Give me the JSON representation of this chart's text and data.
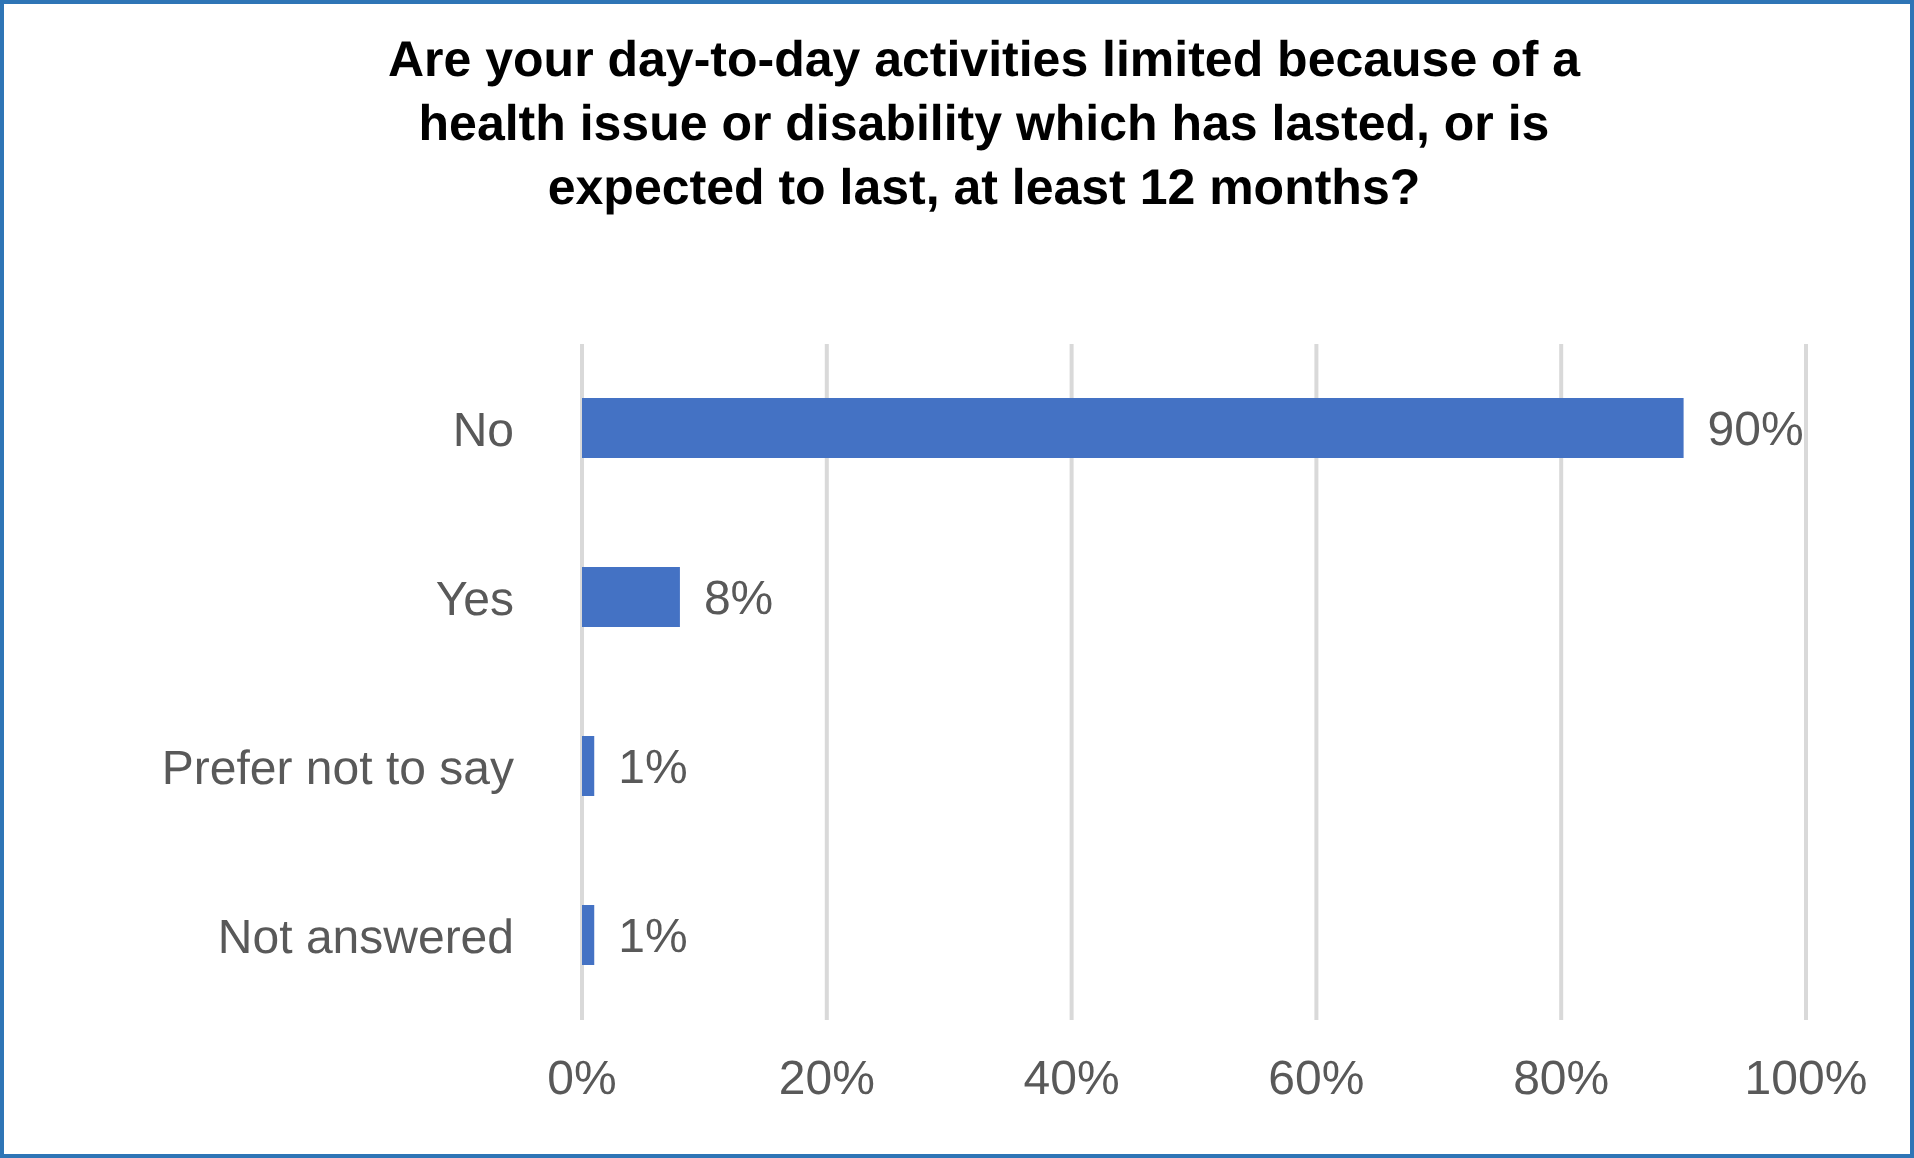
{
  "chart_data": {
    "type": "bar",
    "orientation": "horizontal",
    "title": "Are your day-to-day activities limited because of a health issue or disability which has lasted, or is expected to last, at least 12 months?",
    "categories": [
      "No",
      "Yes",
      "Prefer not to say",
      "Not answered"
    ],
    "values": [
      90,
      8,
      1,
      1
    ],
    "value_labels": [
      "90%",
      "8%",
      "1%",
      "1%"
    ],
    "color": "#4472c4",
    "xlim": [
      0,
      100
    ],
    "xticks": [
      {
        "value": 0,
        "label": "0%"
      },
      {
        "value": 20,
        "label": "20%"
      },
      {
        "value": 40,
        "label": "40%"
      },
      {
        "value": 60,
        "label": "60%"
      },
      {
        "value": 80,
        "label": "80%"
      },
      {
        "value": 100,
        "label": "100%"
      }
    ],
    "grid": "x",
    "legend": false
  }
}
